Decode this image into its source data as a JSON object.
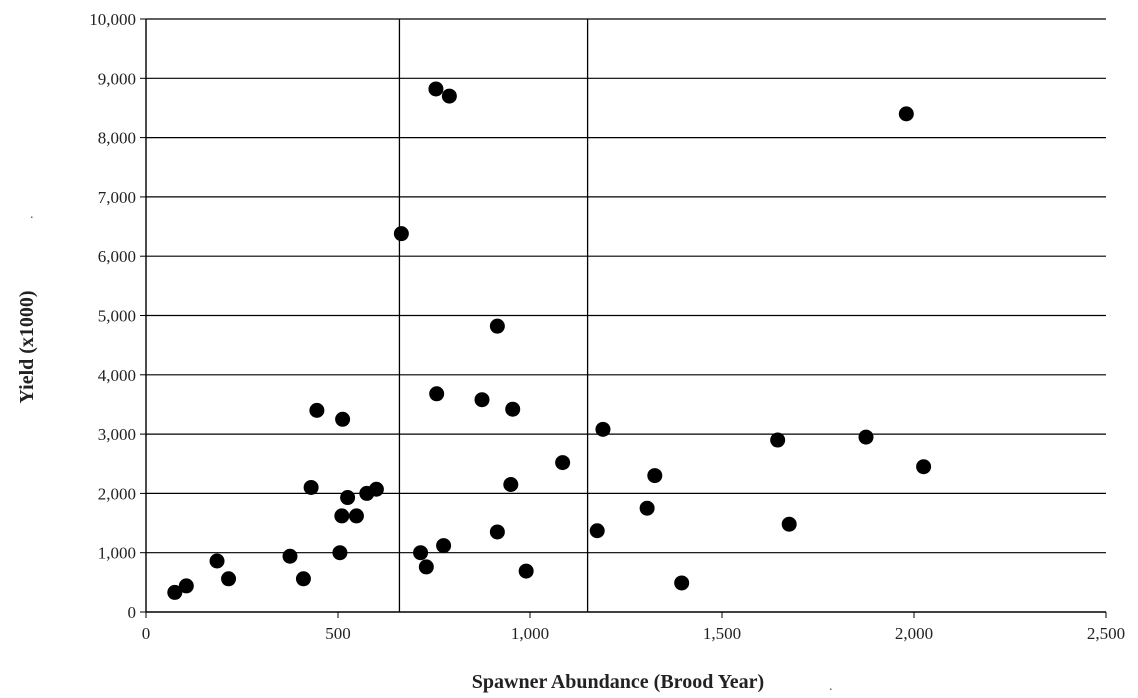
{
  "chart_data": {
    "type": "scatter",
    "title": "",
    "xlabel": "Spawner Abundance (Brood Year)",
    "ylabel": "Yield (x1000)",
    "xlim": [
      0,
      2500
    ],
    "ylim": [
      0,
      10000
    ],
    "x_ticks": [
      0,
      500,
      1000,
      1500,
      2000,
      2500
    ],
    "x_tick_labels": [
      "0",
      "500",
      "1,000",
      "1,500",
      "2,000",
      "2,500"
    ],
    "y_ticks": [
      0,
      1000,
      2000,
      3000,
      4000,
      5000,
      6000,
      7000,
      8000,
      9000,
      10000
    ],
    "y_tick_labels": [
      "0",
      "1,000",
      "2,000",
      "3,000",
      "4,000",
      "5,000",
      "6,000",
      "7,000",
      "8,000",
      "9,000",
      "10,000"
    ],
    "grid": "horizontal",
    "vertical_reference_lines": [
      660,
      1150
    ],
    "marker_color": "#000000",
    "points": [
      {
        "x": 75,
        "y": 330
      },
      {
        "x": 105,
        "y": 440
      },
      {
        "x": 185,
        "y": 860
      },
      {
        "x": 215,
        "y": 560
      },
      {
        "x": 375,
        "y": 940
      },
      {
        "x": 410,
        "y": 560
      },
      {
        "x": 430,
        "y": 2100
      },
      {
        "x": 445,
        "y": 3400
      },
      {
        "x": 505,
        "y": 1000
      },
      {
        "x": 510,
        "y": 1620
      },
      {
        "x": 512,
        "y": 3250
      },
      {
        "x": 525,
        "y": 1930
      },
      {
        "x": 548,
        "y": 1620
      },
      {
        "x": 575,
        "y": 2000
      },
      {
        "x": 600,
        "y": 2070
      },
      {
        "x": 665,
        "y": 6380
      },
      {
        "x": 715,
        "y": 1000
      },
      {
        "x": 730,
        "y": 760
      },
      {
        "x": 755,
        "y": 8820
      },
      {
        "x": 757,
        "y": 3680
      },
      {
        "x": 775,
        "y": 1120
      },
      {
        "x": 790,
        "y": 8700
      },
      {
        "x": 875,
        "y": 3580
      },
      {
        "x": 915,
        "y": 4820
      },
      {
        "x": 915,
        "y": 1350
      },
      {
        "x": 950,
        "y": 2150
      },
      {
        "x": 955,
        "y": 3420
      },
      {
        "x": 990,
        "y": 690
      },
      {
        "x": 1085,
        "y": 2520
      },
      {
        "x": 1175,
        "y": 1370
      },
      {
        "x": 1190,
        "y": 3080
      },
      {
        "x": 1305,
        "y": 1750
      },
      {
        "x": 1325,
        "y": 2300
      },
      {
        "x": 1395,
        "y": 490
      },
      {
        "x": 1645,
        "y": 2900
      },
      {
        "x": 1675,
        "y": 1480
      },
      {
        "x": 1875,
        "y": 2950
      },
      {
        "x": 1980,
        "y": 8400
      },
      {
        "x": 2025,
        "y": 2450
      }
    ]
  }
}
